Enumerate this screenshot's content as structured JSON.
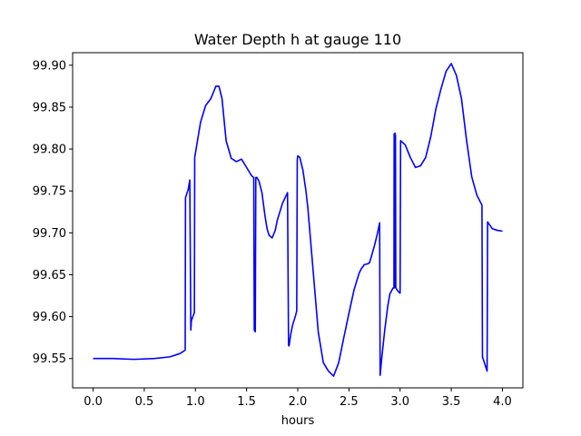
{
  "chart_data": {
    "type": "line",
    "title": "Water Depth h at gauge 110",
    "xlabel": "hours",
    "ylabel": "",
    "xlim": [
      -0.2,
      4.2
    ],
    "ylim": [
      99.515,
      99.915
    ],
    "xticks": [
      0.0,
      0.5,
      1.0,
      1.5,
      2.0,
      2.5,
      3.0,
      3.5,
      4.0
    ],
    "xtick_labels": [
      "0.0",
      "0.5",
      "1.0",
      "1.5",
      "2.0",
      "2.5",
      "3.0",
      "3.5",
      "4.0"
    ],
    "yticks": [
      99.55,
      99.6,
      99.65,
      99.7,
      99.75,
      99.8,
      99.85,
      99.9
    ],
    "ytick_labels": [
      "99.55",
      "99.60",
      "99.65",
      "99.70",
      "99.75",
      "99.80",
      "99.85",
      "99.90"
    ],
    "grid": false,
    "line_color": "#0000ff",
    "series": [
      {
        "x": [
          0.0,
          0.2,
          0.4,
          0.6,
          0.75,
          0.85,
          0.9,
          0.903,
          0.93,
          0.945,
          0.955,
          0.96,
          0.99,
          0.993,
          1.05,
          1.1,
          1.15,
          1.2,
          1.23,
          1.26,
          1.3,
          1.35,
          1.4,
          1.45,
          1.5,
          1.55,
          1.57,
          1.575,
          1.585,
          1.59,
          1.6,
          1.62,
          1.65,
          1.68,
          1.7,
          1.72,
          1.75,
          1.78,
          1.8,
          1.85,
          1.9,
          1.91,
          1.915,
          1.93,
          1.95,
          1.98,
          1.99,
          1.995,
          2.0,
          2.02,
          2.05,
          2.08,
          2.1,
          2.15,
          2.2,
          2.25,
          2.3,
          2.35,
          2.4,
          2.45,
          2.5,
          2.55,
          2.6,
          2.62,
          2.65,
          2.68,
          2.7,
          2.72,
          2.75,
          2.78,
          2.8,
          2.805,
          2.82,
          2.85,
          2.88,
          2.9,
          2.93,
          2.94,
          2.942,
          2.945,
          2.947,
          2.95,
          2.955,
          2.958,
          2.96,
          2.97,
          2.99,
          3.0,
          3.005,
          3.05,
          3.1,
          3.15,
          3.2,
          3.25,
          3.3,
          3.35,
          3.4,
          3.45,
          3.5,
          3.55,
          3.6,
          3.65,
          3.7,
          3.75,
          3.8,
          3.805,
          3.85,
          3.855,
          3.9,
          3.95,
          4.0
        ],
        "y": [
          99.55,
          99.55,
          99.549,
          99.55,
          99.552,
          99.556,
          99.56,
          99.742,
          99.752,
          99.763,
          99.584,
          99.595,
          99.605,
          99.79,
          99.832,
          99.852,
          99.86,
          99.875,
          99.875,
          99.86,
          99.81,
          99.789,
          99.785,
          99.788,
          99.778,
          99.768,
          99.766,
          99.584,
          99.582,
          99.766,
          99.766,
          99.762,
          99.748,
          99.72,
          99.705,
          99.697,
          99.694,
          99.703,
          99.715,
          99.735,
          99.748,
          99.566,
          99.565,
          99.578,
          99.59,
          99.602,
          99.607,
          99.787,
          99.792,
          99.79,
          99.775,
          99.75,
          99.728,
          99.655,
          99.582,
          99.545,
          99.535,
          99.529,
          99.545,
          99.575,
          99.604,
          99.632,
          99.652,
          99.657,
          99.662,
          99.663,
          99.664,
          99.672,
          99.685,
          99.7,
          99.712,
          99.53,
          99.55,
          99.584,
          99.613,
          99.627,
          99.634,
          99.634,
          99.818,
          99.818,
          99.635,
          99.819,
          99.816,
          99.636,
          99.634,
          99.632,
          99.629,
          99.628,
          99.81,
          99.805,
          99.79,
          99.778,
          99.78,
          99.79,
          99.815,
          99.848,
          99.872,
          99.893,
          99.902,
          99.888,
          99.86,
          99.81,
          99.767,
          99.745,
          99.733,
          99.552,
          99.535,
          99.713,
          99.705,
          99.703,
          99.702
        ]
      }
    ]
  }
}
